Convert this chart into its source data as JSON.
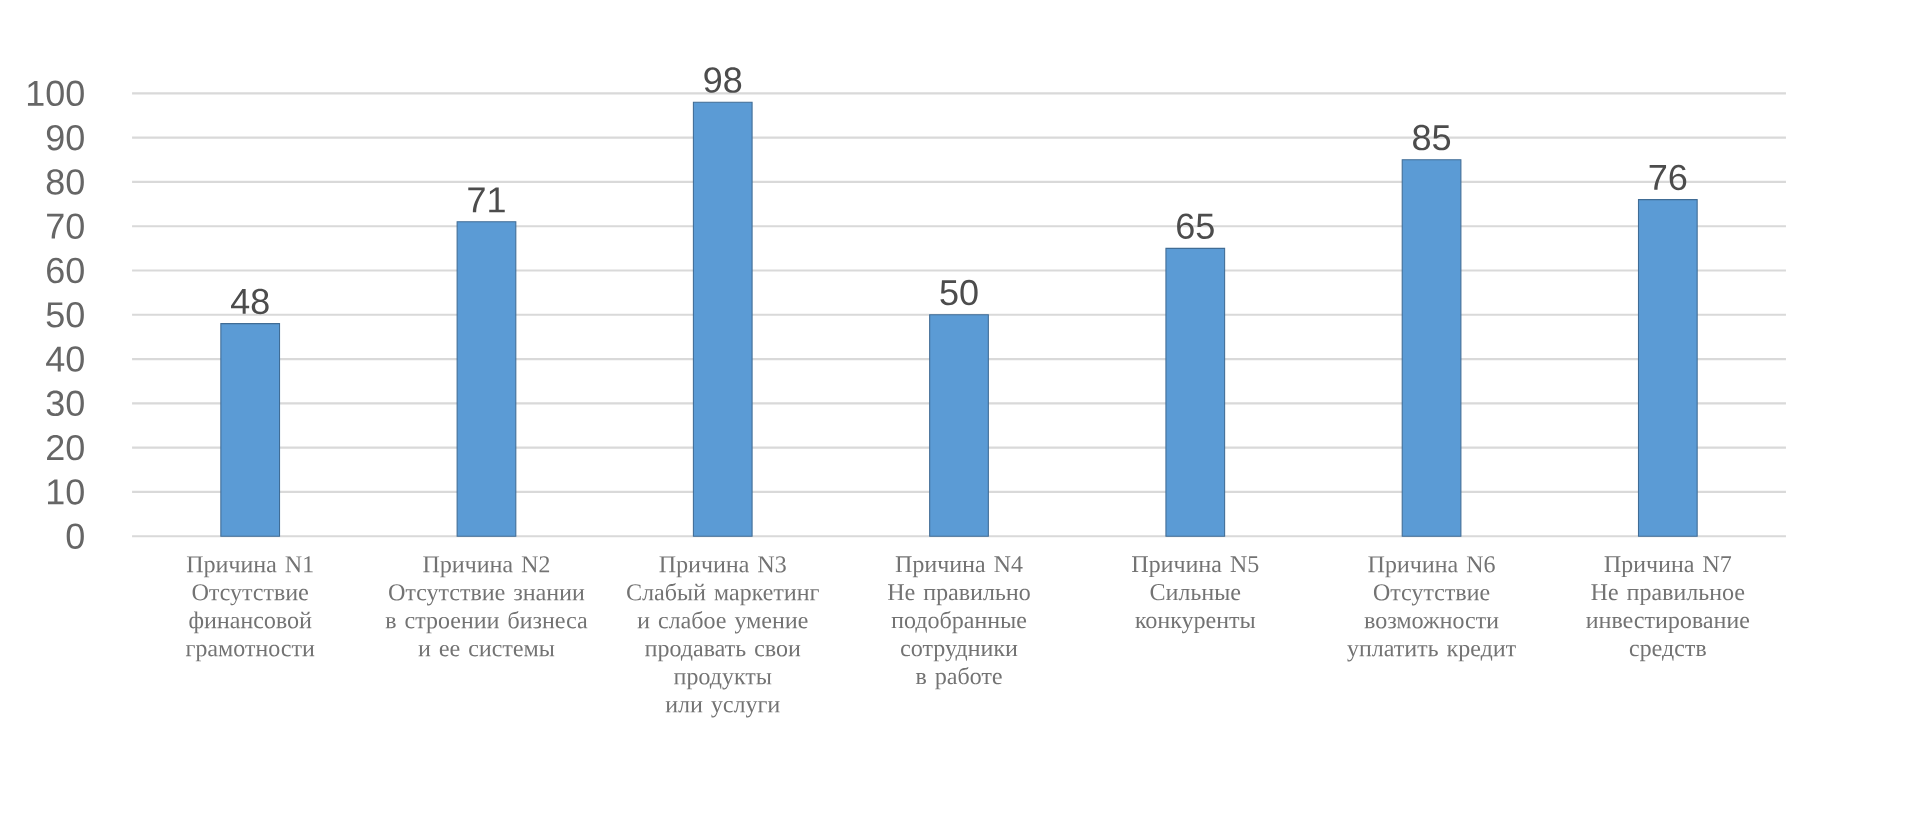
{
  "chart_data": {
    "type": "bar",
    "categories": [
      "Причина N1 Отсутствие финансовой грамотности",
      "Причина N2 Отсутствие знании в строении бизнеса и ее системы",
      "Причина N3 Слабый маркетинг и слабое умение продавать свои продукты или услуги",
      "Причина N4 Не правильно подобранные сотрудники в работе",
      "Причина N5 Сильные конкуренты",
      "Причина N6 Отсутствие возможности уплатить кредит",
      "Причина N7 Не правильное инвестирование средств"
    ],
    "values": [
      48,
      71,
      98,
      50,
      65,
      85,
      76
    ],
    "color": "#5b9bd5",
    "ylim": [
      0,
      100
    ],
    "yticks": [
      0,
      10,
      20,
      30,
      40,
      50,
      60,
      70,
      80,
      90,
      100
    ],
    "grid": "y",
    "data_labels": true
  }
}
